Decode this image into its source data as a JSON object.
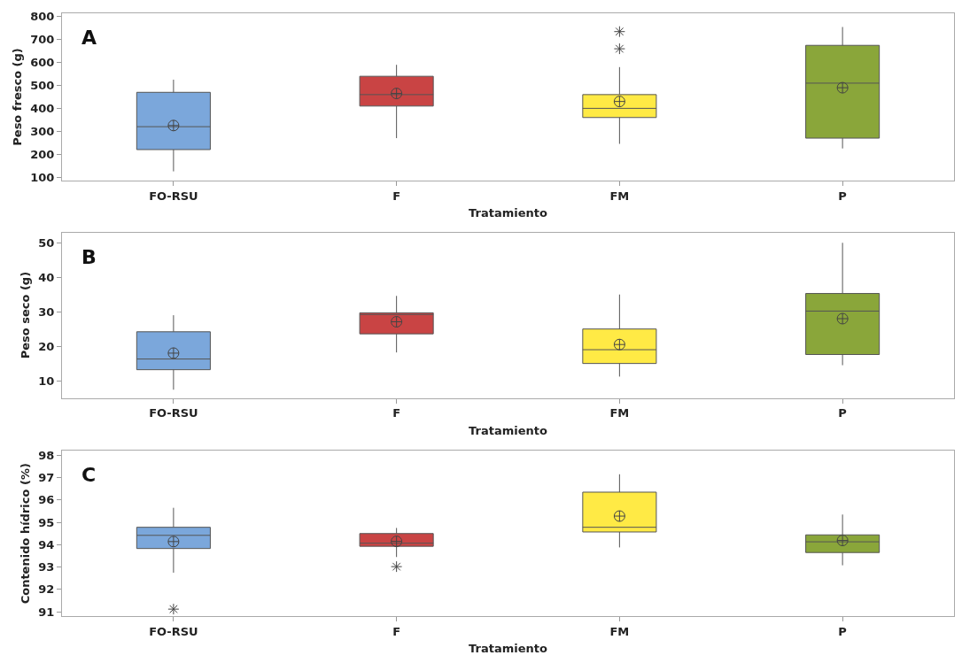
{
  "chart_data": [
    {
      "type": "box",
      "title": "A",
      "xlabel": "Tratamiento",
      "ylabel": "Peso fresco (g)",
      "categories": [
        "FO-RSU",
        "F",
        "FM",
        "P"
      ],
      "colors": [
        "#7ba7db",
        "#c94444",
        "#ffea45",
        "#8aa63a"
      ],
      "ylim": [
        85,
        815
      ],
      "yticks": [
        100,
        200,
        300,
        400,
        500,
        600,
        700,
        800
      ],
      "boxes": [
        {
          "low": 125,
          "q1": 220,
          "median": 320,
          "q3": 470,
          "high": 525,
          "mean": 325
        },
        {
          "low": 270,
          "q1": 410,
          "median": 460,
          "q3": 540,
          "high": 590,
          "mean": 465
        },
        {
          "low": 245,
          "q1": 360,
          "median": 400,
          "q3": 460,
          "high": 580,
          "mean": 430,
          "outliers": [
            660,
            735
          ]
        },
        {
          "low": 225,
          "q1": 270,
          "median": 510,
          "q3": 675,
          "high": 755,
          "mean": 490
        }
      ]
    },
    {
      "type": "box",
      "title": "B",
      "xlabel": "Tratamiento",
      "ylabel": "Peso seco (g)",
      "categories": [
        "FO-RSU",
        "F",
        "FM",
        "P"
      ],
      "colors": [
        "#7ba7db",
        "#c94444",
        "#ffea45",
        "#8aa63a"
      ],
      "ylim": [
        5,
        53
      ],
      "yticks": [
        10,
        20,
        30,
        40,
        50
      ],
      "boxes": [
        {
          "low": 7.4,
          "q1": 13.2,
          "median": 16.3,
          "q3": 24.2,
          "high": 29.0,
          "mean": 18.0
        },
        {
          "low": 18.2,
          "q1": 23.6,
          "median": 29.2,
          "q3": 29.7,
          "high": 34.6,
          "mean": 27.1
        },
        {
          "low": 11.2,
          "q1": 15.0,
          "median": 19.0,
          "q3": 25.0,
          "high": 35.0,
          "mean": 20.5
        },
        {
          "low": 14.5,
          "q1": 17.6,
          "median": 30.2,
          "q3": 35.3,
          "high": 50.0,
          "mean": 28.0
        }
      ]
    },
    {
      "type": "box",
      "title": "C",
      "xlabel": "Tratamiento",
      "ylabel": "Contenido hídrico (%)",
      "categories": [
        "FO-RSU",
        "F",
        "FM",
        "P"
      ],
      "colors": [
        "#7ba7db",
        "#c94444",
        "#ffea45",
        "#8aa63a"
      ],
      "ylim": [
        90.8,
        98.2
      ],
      "yticks": [
        91,
        92,
        93,
        94,
        95,
        96,
        97,
        98
      ],
      "boxes": [
        {
          "low": 92.75,
          "q1": 93.83,
          "median": 94.42,
          "q3": 94.78,
          "high": 95.65,
          "mean": 94.14,
          "outliers": [
            91.12
          ]
        },
        {
          "low": 93.45,
          "q1": 93.93,
          "median": 94.07,
          "q3": 94.5,
          "high": 94.75,
          "mean": 94.15,
          "outliers": [
            93.02
          ]
        },
        {
          "low": 93.88,
          "q1": 94.57,
          "median": 94.78,
          "q3": 96.35,
          "high": 97.15,
          "mean": 95.28
        },
        {
          "low": 93.08,
          "q1": 93.65,
          "median": 94.13,
          "q3": 94.44,
          "high": 95.35,
          "mean": 94.19
        }
      ]
    }
  ]
}
